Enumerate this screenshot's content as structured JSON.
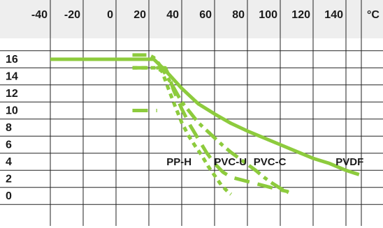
{
  "chart_data": {
    "type": "line",
    "title": "",
    "xlabel": "",
    "ylabel": "",
    "x_unit": "°C",
    "xlim": [
      -50,
      160
    ],
    "ylim": [
      -1,
      17
    ],
    "x_ticks": [
      "-40",
      "-20",
      "0",
      "20",
      "40",
      "60",
      "80",
      "100",
      "120",
      "140"
    ],
    "y_ticks": [
      "16",
      "14",
      "12",
      "10",
      "8",
      "6",
      "4",
      "2",
      "0"
    ],
    "grid": true,
    "colors": {
      "series": "#8dcb3d",
      "grid": "#222222",
      "header": "#eeeeee"
    },
    "series": [
      {
        "name": "PVDF",
        "style": "solid",
        "x": [
          -40,
          20,
          23,
          30,
          40,
          50,
          60,
          70,
          80,
          90,
          100,
          110,
          120,
          130,
          140,
          148
        ],
        "y": [
          16,
          16,
          16,
          14.7,
          12.6,
          10.8,
          9.6,
          8.5,
          7.6,
          6.8,
          6.0,
          5.2,
          4.4,
          3.8,
          3.0,
          2.5
        ]
      },
      {
        "name": "PVC-C",
        "style": "dashdot",
        "x": [
          10,
          15,
          20,
          23,
          26,
          30,
          35,
          40,
          45,
          50,
          55,
          60,
          65,
          70,
          75,
          80,
          85,
          90,
          95,
          100,
          105
        ],
        "y": [
          16.5,
          16.5,
          16.5,
          16.2,
          15.5,
          14.3,
          12.7,
          11.0,
          9.8,
          8.6,
          7.7,
          6.8,
          5.9,
          5.1,
          4.4,
          3.7,
          3.0,
          2.2,
          1.5,
          0.9,
          0.4
        ]
      },
      {
        "name": "PVC-U",
        "style": "dotted",
        "x": [
          10,
          15,
          20,
          25,
          28,
          32,
          36,
          40,
          44,
          48,
          52,
          56,
          60,
          64,
          68,
          70
        ],
        "y": [
          15,
          15,
          15,
          15,
          14.6,
          12.5,
          10.5,
          8.6,
          7.1,
          5.9,
          4.8,
          3.5,
          2.4,
          1.3,
          0.5,
          0.2
        ]
      },
      {
        "name": "PP-H",
        "style": "dashed",
        "x": [
          10,
          20,
          30,
          32,
          35,
          40,
          45,
          50,
          55,
          60,
          65,
          70,
          80,
          90,
          100,
          105
        ],
        "y": [
          15,
          15,
          15,
          14.2,
          12.4,
          10.2,
          8.3,
          6.7,
          5.1,
          3.8,
          2.8,
          2.2,
          1.7,
          1.2,
          0.7,
          0.5
        ]
      },
      {
        "name": "PP-H",
        "style": "dashed",
        "unlabeled": true,
        "x": [
          10,
          15,
          20,
          25
        ],
        "y": [
          10,
          10,
          10,
          10
        ]
      }
    ],
    "annotations": [
      {
        "text": "PP-H",
        "x": 35,
        "y": 4
      },
      {
        "text": "PVC-U",
        "x": 64,
        "y": 4
      },
      {
        "text": "PVC-C",
        "x": 88,
        "y": 4
      },
      {
        "text": "PVDF",
        "x": 138,
        "y": 4
      }
    ]
  }
}
